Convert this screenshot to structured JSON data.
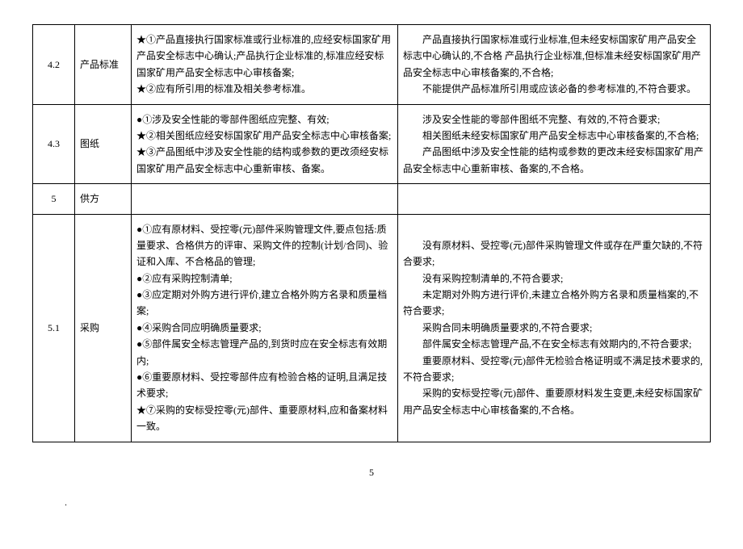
{
  "table": {
    "rows": [
      {
        "num": "4.2",
        "item": "产品标准",
        "req_lines": [
          "★①产品直接执行国家标准或行业标准的,应经安标国家矿用产品安全标志中心确认;产品执行企业标准的,标准应经安标国家矿用产品安全标志中心审核备案;",
          "★②应有所引用的标准及相关参考标准。"
        ],
        "result_lines": [
          "产品直接执行国家标准或行业标准,但未经安标国家矿用产品安全标志中心确认的,不合格 产品执行企业标准,但标准未经安标国家矿用产品安全标志中心审核备案的,不合格;",
          "不能提供产品标准所引用或应该必备的参考标准的,不符合要求。"
        ]
      },
      {
        "num": "4.3",
        "item": "图纸",
        "req_lines": [
          "●①涉及安全性能的零部件图纸应完整、有效;",
          "★②相关图纸应经安标国家矿用产品安全标志中心审核备案;",
          "★③产品图纸中涉及安全性能的结构或参数的更改须经安标国家矿用产品安全标志中心重新审核、备案。"
        ],
        "result_lines": [
          "涉及安全性能的零部件图纸不完整、有效的,不符合要求;",
          "相关图纸未经安标国家矿用产品安全标志中心审核备案的,不合格;",
          "产品图纸中涉及安全性能的结构或参数的更改未经安标国家矿用产品安全标志中心重新审核、备案的,不合格。"
        ]
      },
      {
        "num": "5",
        "item": "供方",
        "req_lines": [],
        "result_lines": []
      },
      {
        "num": "5.1",
        "item": "采购",
        "req_lines": [
          "●①应有原材料、受控零(元)部件采购管理文件,要点包括:质量要求、合格供方的评审、采购文件的控制(计划/合同)、验证和入库、不合格品的管理;",
          "●②应有采购控制清单;",
          "●③应定期对外购方进行评价,建立合格外购方名录和质量档案;",
          "●④采购合同应明确质量要求;",
          "●⑤部件属安全标志管理产品的,到货时应在安全标志有效期内;",
          "●⑥重要原材料、受控零部件应有检验合格的证明,且满足技术要求;",
          "★⑦采购的安标受控零(元)部件、重要原材料,应和备案材料一致。"
        ],
        "result_lines": [
          "没有原材料、受控零(元)部件采购管理文件或存在严重欠缺的,不符合要求;",
          "没有采购控制清单的,不符合要求;",
          "未定期对外购方进行评价,未建立合格外购方名录和质量档案的,不符合要求;",
          "采购合同未明确质量要求的,不符合要求;",
          "部件属安全标志管理产品,不在安全标志有效期内的,不符合要求;",
          "重要原材料、受控零(元)部件无检验合格证明或不满足技术要求的,不符合要求;",
          "采购的安标受控零(元)部件、重要原材料发生变更,未经安标国家矿用产品安全标志中心审核备案的,不合格。"
        ]
      }
    ]
  },
  "footer": {
    "page_num": "5",
    "dot": "."
  }
}
